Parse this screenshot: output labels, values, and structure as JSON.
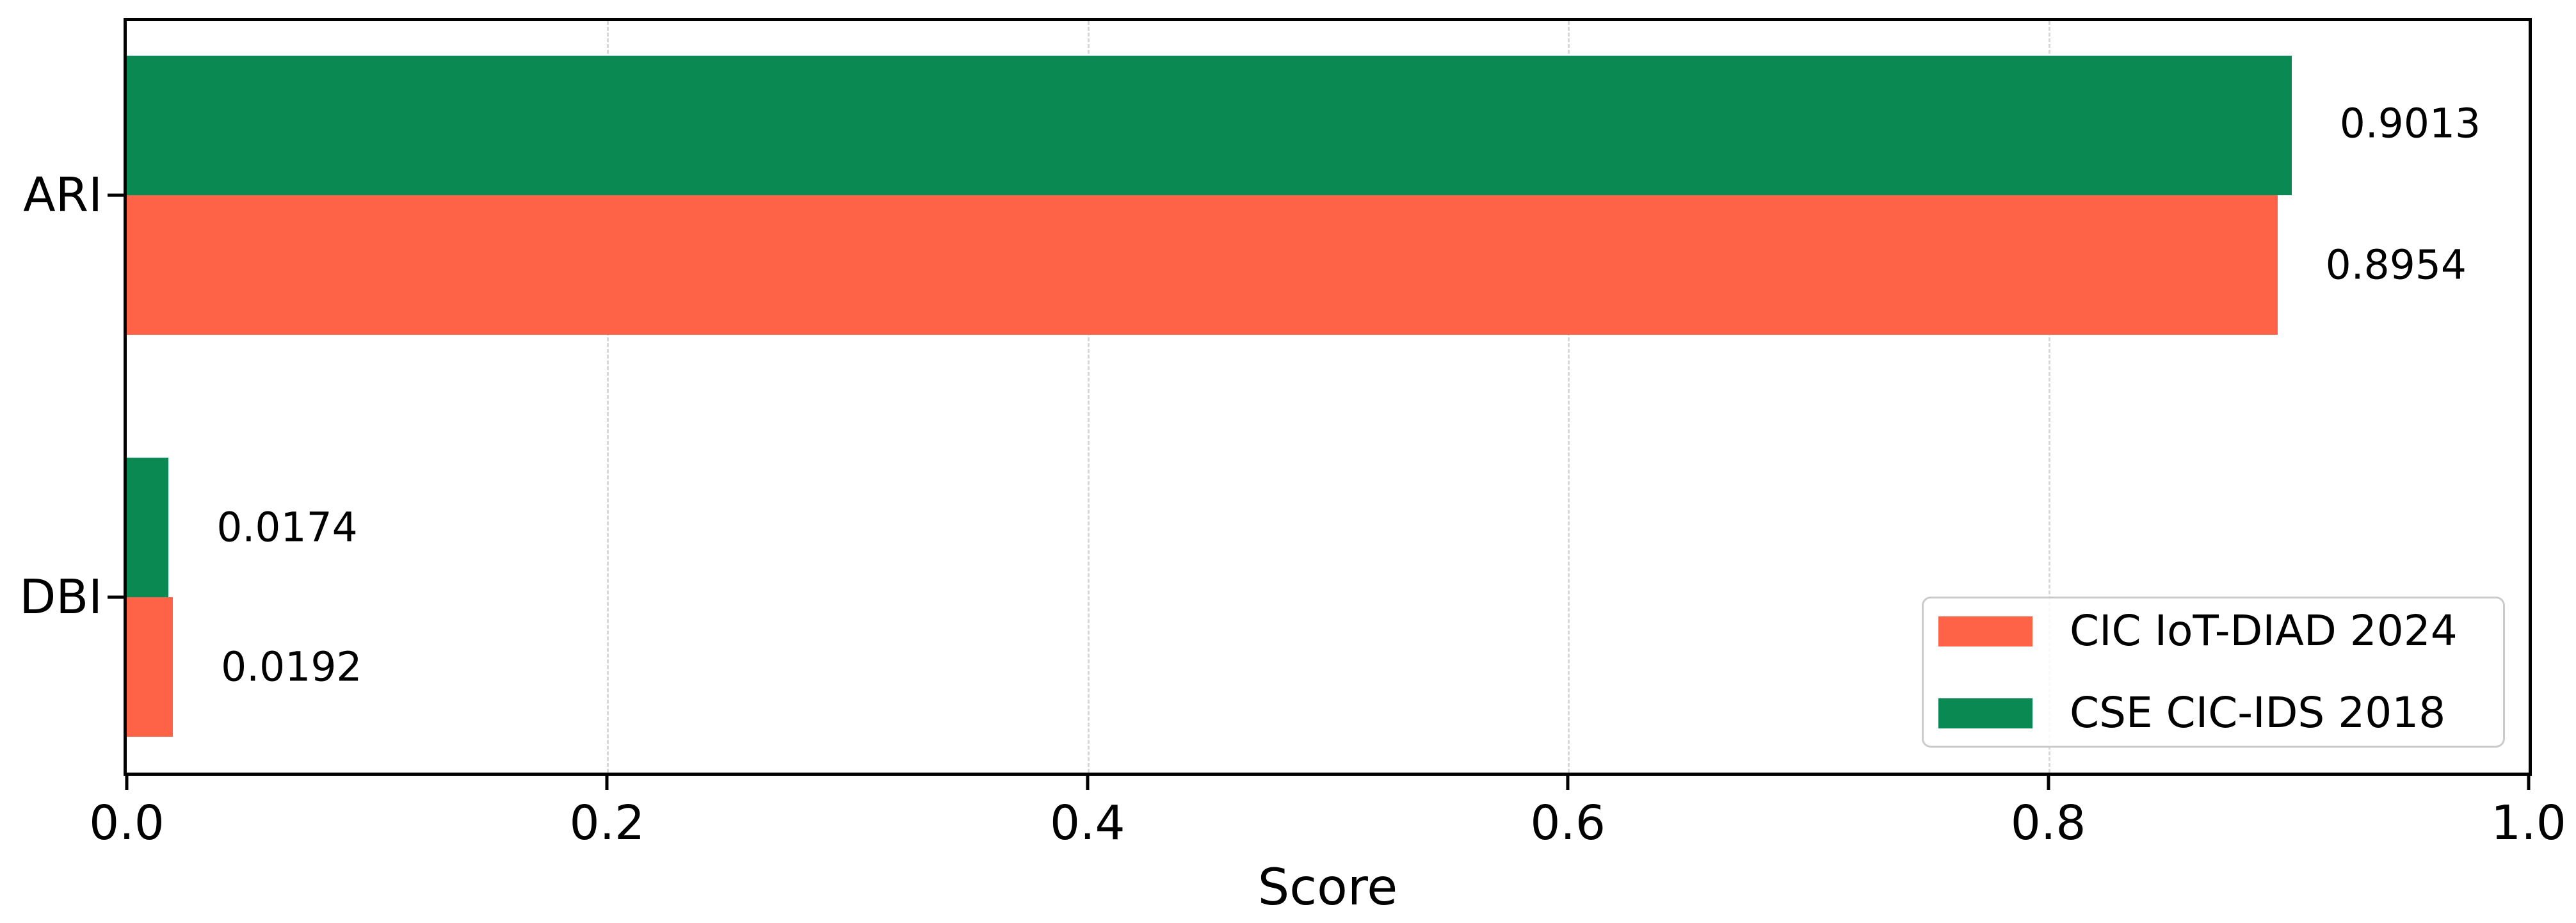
{
  "chart_data": {
    "type": "bar",
    "orientation": "horizontal",
    "xlabel": "Score",
    "ylabel": "",
    "xlim": [
      0.0,
      1.0
    ],
    "xticks": [
      "0.0",
      "0.2",
      "0.4",
      "0.6",
      "0.8",
      "1.0"
    ],
    "categories": [
      "ARI",
      "DBI"
    ],
    "series": [
      {
        "name": "CIC IoT-DIAD 2024",
        "color": "#ff6347",
        "values": [
          0.8954,
          0.0192
        ],
        "value_labels": [
          "0.8954",
          "0.0192"
        ]
      },
      {
        "name": "CSE CIC-IDS 2018",
        "color": "#0a8a52",
        "values": [
          0.9013,
          0.0174
        ],
        "value_labels": [
          "0.9013",
          "0.0174"
        ]
      }
    ],
    "annotation_offset_x": 0.02,
    "grid": {
      "axis": "x",
      "style": "dashed",
      "color": "#d8d8d8"
    },
    "legend_position": "lower right",
    "spine_color": "#000000",
    "background": "#ffffff"
  }
}
